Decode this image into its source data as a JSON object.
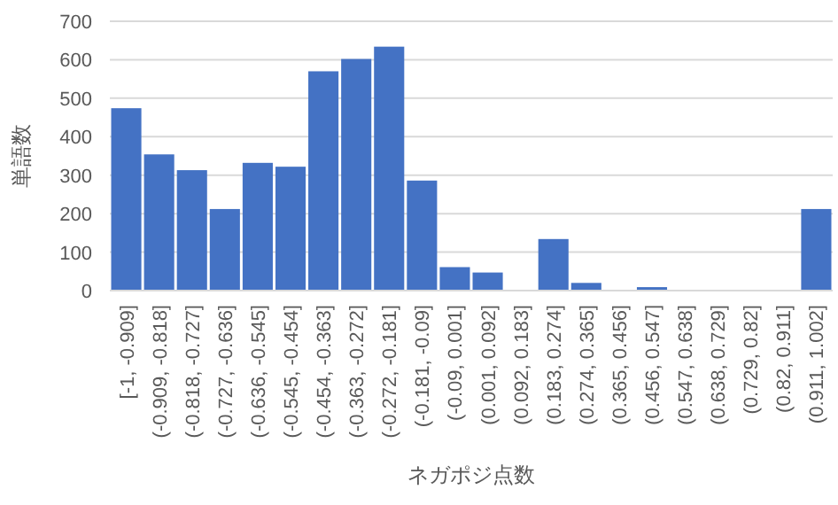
{
  "chart_data": {
    "type": "bar",
    "xlabel": "ネガポジ点数",
    "ylabel": "単語数",
    "categories": [
      "[-1, -0.909]",
      "(-0.909, -0.818]",
      "(-0.818, -0.727]",
      "(-0.727, -0.636]",
      "(-0.636, -0.545]",
      "(-0.545, -0.454]",
      "(-0.454, -0.363]",
      "(-0.363, -0.272]",
      "(-0.272, -0.181]",
      "(-0.181, -0.09]",
      "(-0.09, 0.001]",
      "(0.001, 0.092]",
      "(0.092, 0.183]",
      "(0.183, 0.274]",
      "(0.274, 0.365]",
      "(0.365, 0.456]",
      "(0.456, 0.547]",
      "(0.547, 0.638]",
      "(0.638, 0.729]",
      "(0.729, 0.82]",
      "(0.82, 0.911]",
      "(0.911, 1.002]"
    ],
    "values": [
      474,
      354,
      313,
      212,
      332,
      322,
      570,
      602,
      634,
      286,
      61,
      47,
      0,
      134,
      20,
      0,
      9,
      0,
      0,
      0,
      0,
      212
    ],
    "color": "#4472c4",
    "ylim": [
      0,
      700
    ],
    "yticks": [
      0,
      100,
      200,
      300,
      400,
      500,
      600,
      700
    ],
    "grid": "y"
  }
}
